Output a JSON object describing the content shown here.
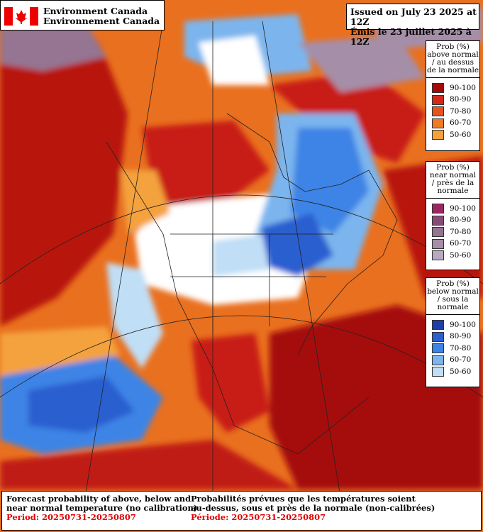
{
  "header": {
    "agency_en": "Environment Canada",
    "agency_fr": "Environnement Canada"
  },
  "issued": {
    "en": "Issued on July 23 2025 at 12Z",
    "fr": "Émis le 23 juillet 2025 à 12Z"
  },
  "legends": [
    {
      "title": [
        "Prob (%)",
        "above normal",
        "/ au dessus",
        "de la normale"
      ],
      "items": [
        {
          "label": "90-100",
          "color": "#a50a0a"
        },
        {
          "label": "80-90",
          "color": "#d12a1c"
        },
        {
          "label": "70-80",
          "color": "#e6531f"
        },
        {
          "label": "60-70",
          "color": "#ef7a22"
        },
        {
          "label": "50-60",
          "color": "#f4a23e"
        }
      ]
    },
    {
      "title": [
        "Prob (%)",
        "near normal",
        "/ près de la",
        "normale"
      ],
      "items": [
        {
          "label": "90-100",
          "color": "#9c2663"
        },
        {
          "label": "80-90",
          "color": "#8a4a78"
        },
        {
          "label": "70-80",
          "color": "#957491"
        },
        {
          "label": "60-70",
          "color": "#a58ea8"
        },
        {
          "label": "50-60",
          "color": "#b9a8c2"
        }
      ]
    },
    {
      "title": [
        "Prob (%)",
        "below normal",
        "/ sous la normale"
      ],
      "items": [
        {
          "label": "90-100",
          "color": "#1e3fa6"
        },
        {
          "label": "80-90",
          "color": "#2c5fd0"
        },
        {
          "label": "70-80",
          "color": "#3c84e6"
        },
        {
          "label": "60-70",
          "color": "#7cb5ee"
        },
        {
          "label": "50-60",
          "color": "#c0def6"
        }
      ]
    }
  ],
  "footer": {
    "en": [
      "Forecast probability of above, below and",
      "near normal temperature (no calibration)"
    ],
    "en_period": "Period: 20250731-20250807",
    "fr": [
      "Probabilités prévues que les températures soient",
      "au-dessus, sous et près de la normale (non-calibrées)"
    ],
    "fr_period": "Période: 20250731-20250807"
  }
}
